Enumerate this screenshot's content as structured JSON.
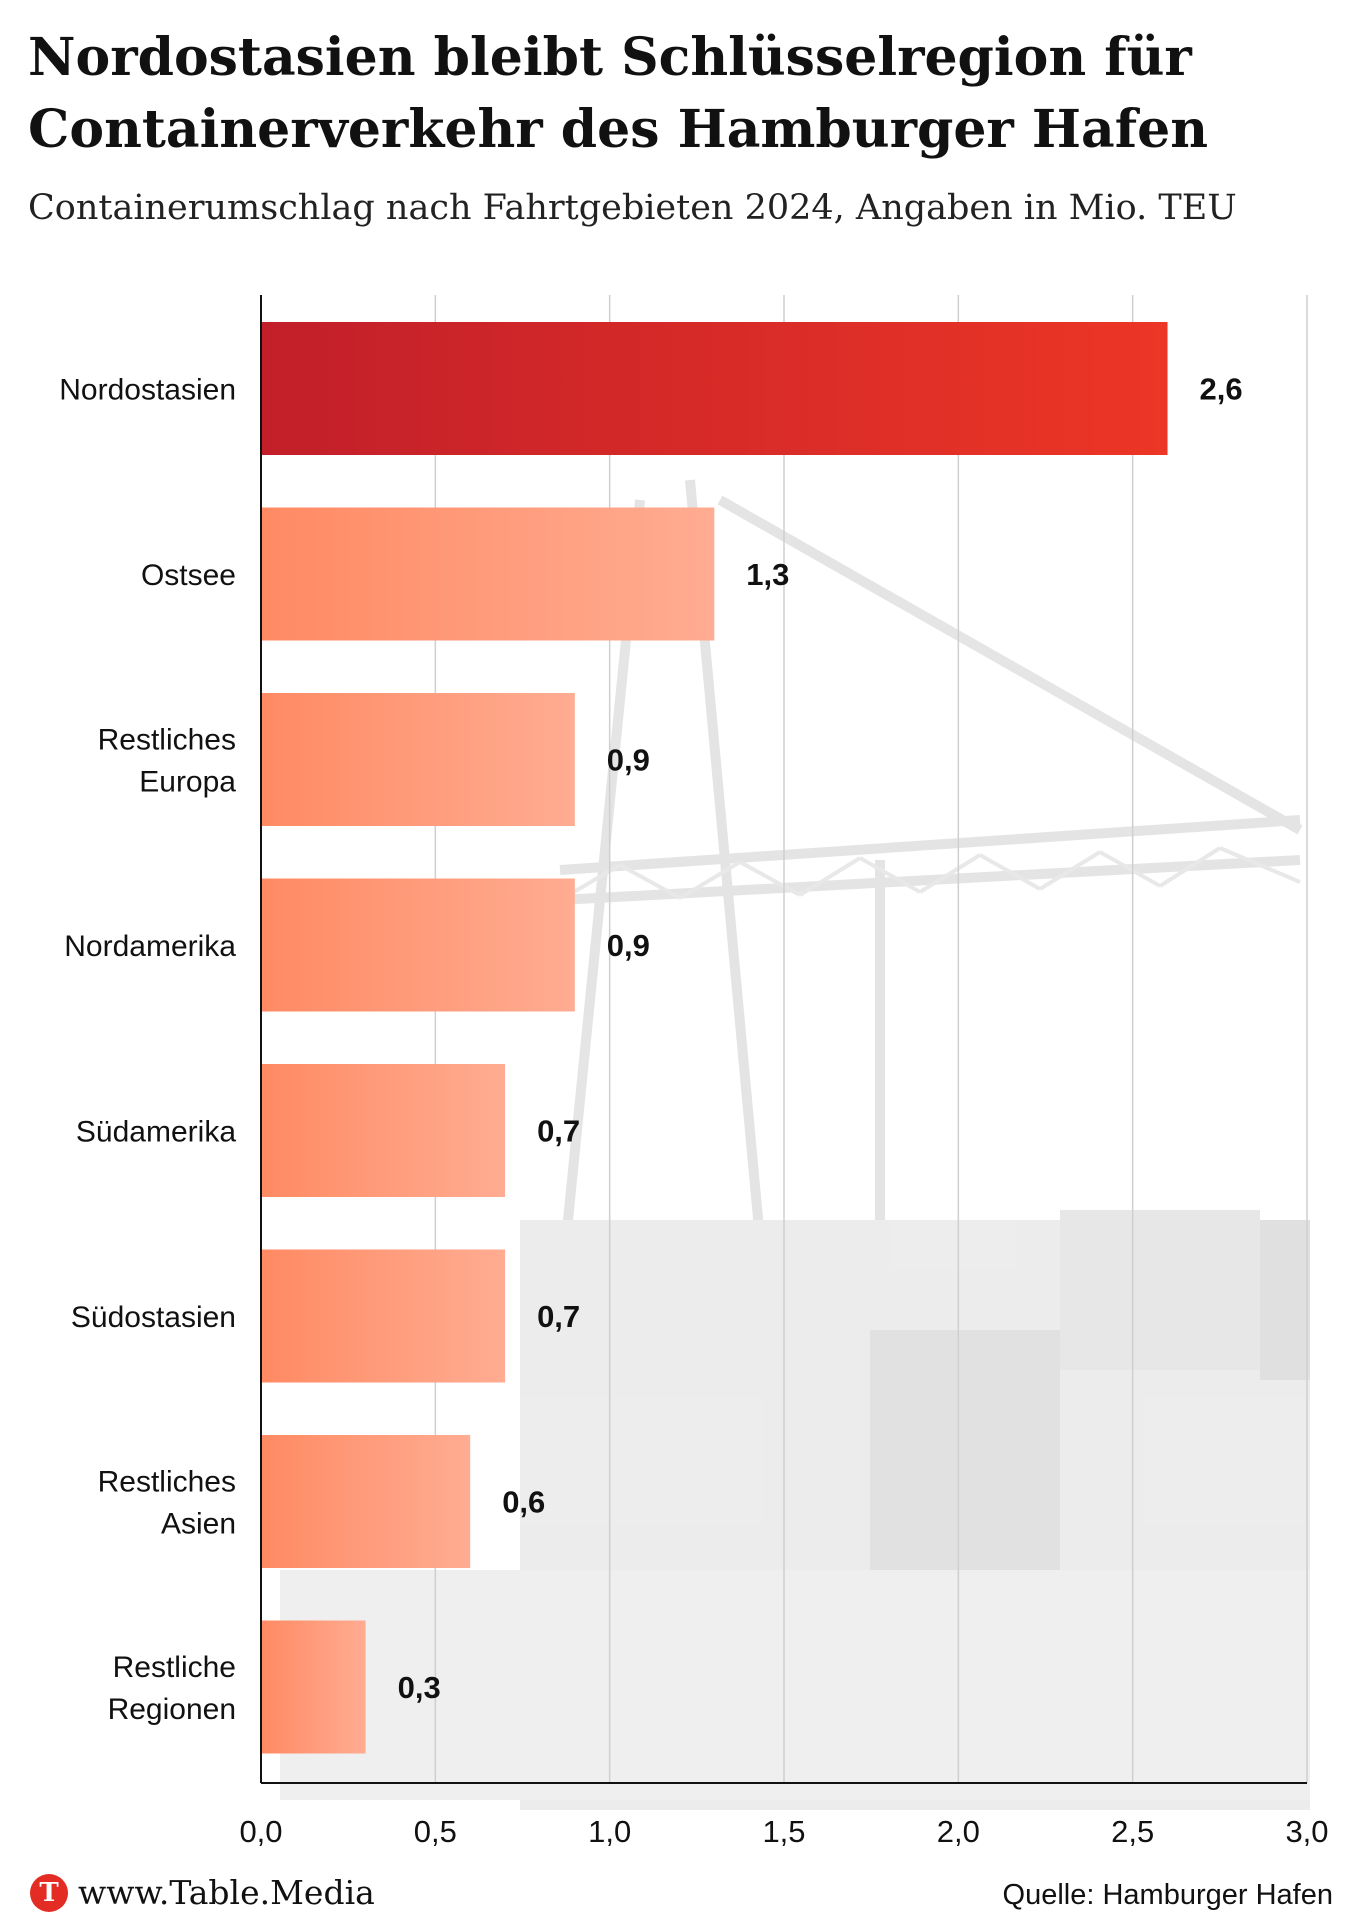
{
  "title": "Nordostasien bleibt Schlüsselregion für Containerverkehr des Hamburger Hafen",
  "subtitle": "Containerumschlag nach Fahrtgebieten 2024, Angaben in Mio. TEU",
  "footer": {
    "logo": "T",
    "url": "www.Table.Media",
    "source": "Quelle: Hamburger Hafen"
  },
  "colors": {
    "highlight_start": "#c21f2a",
    "highlight_end": "#ec3626",
    "bar_start": "#ff8a63",
    "bar_end": "#ffac92",
    "background_photo": "#e6e6e6",
    "grid": "#cfcfcf"
  },
  "chart_data": {
    "type": "bar",
    "orientation": "horizontal",
    "categories": [
      [
        "Nordostasien"
      ],
      [
        "Ostsee"
      ],
      [
        "Restliches",
        "Europa"
      ],
      [
        "Nordamerika"
      ],
      [
        "Südamerika"
      ],
      [
        "Südostasien"
      ],
      [
        "Restliches",
        "Asien"
      ],
      [
        "Restliche",
        "Regionen"
      ]
    ],
    "values": [
      2.6,
      1.3,
      0.9,
      0.9,
      0.7,
      0.7,
      0.6,
      0.3
    ],
    "value_labels": [
      "2,6",
      "1,3",
      "0,9",
      "0,9",
      "0,7",
      "0,7",
      "0,6",
      "0,3"
    ],
    "highlight_index": 0,
    "xlim": [
      0,
      3
    ],
    "x_ticks": [
      0,
      0.5,
      1,
      1.5,
      2,
      2.5,
      3
    ],
    "x_tick_labels": [
      "0,0",
      "0,5",
      "1,0",
      "1,5",
      "2,0",
      "2,5",
      "3,0"
    ],
    "grid": "vertical",
    "background": "grayscale photo of container port cranes"
  }
}
